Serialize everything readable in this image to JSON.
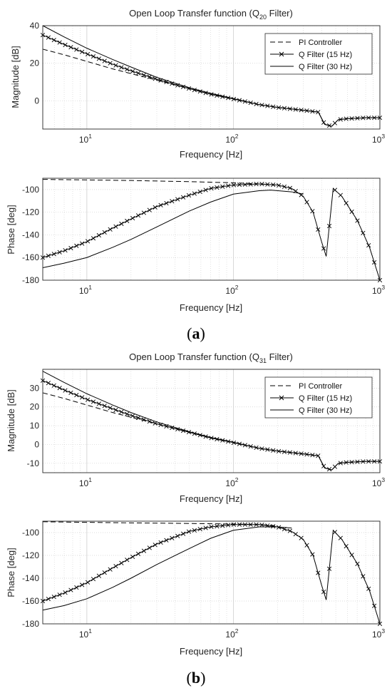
{
  "panels": [
    {
      "label": "a",
      "title_main": "Open Loop Transfer function (Q",
      "title_sub": "20",
      "title_tail": " Filter)"
    },
    {
      "label": "b",
      "title_main": "Open Loop Transfer function (Q",
      "title_sub": "31",
      "title_tail": " Filter)"
    }
  ],
  "chart_data": [
    {
      "type": "line",
      "panel": "a",
      "xlabel": "Frequency [Hz]",
      "ylabel": "Magnitude [dB]",
      "xscale": "log",
      "xlim": [
        5,
        1000
      ],
      "ylim": [
        -15,
        40
      ],
      "yticks": [
        0,
        20,
        40
      ],
      "xtick_labels": [
        "10",
        "10",
        "10"
      ],
      "xtick_exponents": [
        "1",
        "2",
        "3"
      ],
      "grid": true,
      "legend_position": "top-right",
      "series": [
        {
          "name": "PI Controller",
          "style": "dashed",
          "x": [
            5,
            7,
            10,
            15,
            20,
            30,
            50,
            70,
            100,
            150,
            200,
            300,
            380
          ],
          "y": [
            27.5,
            24.5,
            21,
            17,
            14.5,
            11,
            6.5,
            3.5,
            1,
            -2,
            -3.5,
            -5,
            -6
          ]
        },
        {
          "name": "Q Filter (15 Hz)",
          "style": "solid-x",
          "x": [
            5,
            7,
            10,
            15,
            20,
            30,
            50,
            70,
            100,
            150,
            200,
            300,
            380,
            420,
            470,
            520,
            600,
            800,
            1000
          ],
          "y": [
            35,
            30,
            25,
            19.5,
            16,
            11.5,
            6.5,
            3.5,
            1,
            -2,
            -3.5,
            -5,
            -6,
            -12.5,
            -13.5,
            -10,
            -9.5,
            -9,
            -9
          ]
        },
        {
          "name": "Q Filter (30 Hz)",
          "style": "solid",
          "x": [
            5,
            7,
            10,
            15,
            20,
            30,
            50,
            70,
            100,
            150,
            200,
            300,
            380,
            420,
            470,
            520,
            600,
            800,
            1000
          ],
          "y": [
            40,
            34,
            28,
            22,
            18,
            12.5,
            7,
            4,
            1.2,
            -2,
            -3.5,
            -5,
            -6,
            -12.5,
            -13.5,
            -10,
            -9.5,
            -9,
            -9
          ]
        }
      ]
    },
    {
      "type": "line",
      "panel": "a",
      "xlabel": "Frequency [Hz]",
      "ylabel": "Phase [deg]",
      "xscale": "log",
      "xlim": [
        5,
        1000
      ],
      "ylim": [
        -180,
        -90
      ],
      "yticks": [
        -180,
        -160,
        -140,
        -120,
        -100
      ],
      "xtick_labels": [
        "10",
        "10",
        "10"
      ],
      "xtick_exponents": [
        "1",
        "2",
        "3"
      ],
      "grid": true,
      "series": [
        {
          "name": "PI Controller",
          "style": "dashed",
          "x": [
            5,
            10,
            20,
            50,
            100,
            150,
            200
          ],
          "y": [
            -91,
            -91.5,
            -92,
            -93,
            -94,
            -95,
            -96
          ]
        },
        {
          "name": "Q Filter (15 Hz)",
          "style": "solid-x",
          "x": [
            5,
            7,
            10,
            15,
            20,
            30,
            50,
            70,
            100,
            150,
            200,
            250,
            300,
            350,
            400,
            430,
            480,
            550,
            700,
            850,
            1000
          ],
          "y": [
            -160,
            -154,
            -146,
            -134,
            -126,
            -115,
            -105,
            -99,
            -96,
            -95,
            -96,
            -99,
            -106,
            -120,
            -146,
            -159,
            -99,
            -106,
            -127,
            -151,
            -180
          ]
        },
        {
          "name": "Q Filter (30 Hz)",
          "style": "solid",
          "x": [
            5,
            7,
            10,
            15,
            20,
            30,
            50,
            70,
            100,
            150,
            180,
            250,
            300
          ],
          "y": [
            -169,
            -165,
            -160,
            -151,
            -144,
            -133,
            -119,
            -111,
            -104,
            -101,
            -100.5,
            -102,
            -104
          ]
        }
      ]
    },
    {
      "type": "line",
      "panel": "b",
      "xlabel": "Frequency [Hz]",
      "ylabel": "Magnitude [dB]",
      "xscale": "log",
      "xlim": [
        5,
        1000
      ],
      "ylim": [
        -15,
        40
      ],
      "yticks": [
        -10,
        0,
        10,
        20,
        30
      ],
      "xtick_labels": [
        "10",
        "10",
        "10"
      ],
      "xtick_exponents": [
        "1",
        "2",
        "3"
      ],
      "grid": true,
      "legend_position": "top-right",
      "series": [
        {
          "name": "PI Controller",
          "style": "dashed",
          "x": [
            5,
            7,
            10,
            15,
            20,
            30,
            50,
            70,
            100,
            150,
            200,
            300,
            380
          ],
          "y": [
            27.5,
            24.5,
            21,
            17,
            14.5,
            11,
            6.5,
            3.5,
            1,
            -2,
            -3.5,
            -5,
            -6
          ]
        },
        {
          "name": "Q Filter (15 Hz)",
          "style": "solid-x",
          "x": [
            5,
            7,
            10,
            15,
            20,
            30,
            50,
            70,
            100,
            150,
            200,
            300,
            380,
            420,
            470,
            520,
            600,
            800,
            1000
          ],
          "y": [
            34,
            29,
            24,
            19,
            15.5,
            11,
            6.5,
            3.5,
            1,
            -2,
            -3.5,
            -5,
            -6,
            -12.5,
            -13.5,
            -10,
            -9.5,
            -9,
            -9
          ]
        },
        {
          "name": "Q Filter (30 Hz)",
          "style": "solid",
          "x": [
            5,
            7,
            10,
            15,
            20,
            30,
            50,
            70,
            100,
            150,
            200,
            300,
            380,
            420,
            470,
            520,
            600,
            800,
            1000
          ],
          "y": [
            39,
            33,
            27,
            21,
            17,
            12,
            6.8,
            3.8,
            1.2,
            -2,
            -3.5,
            -5,
            -6,
            -12.5,
            -13.5,
            -10,
            -9.5,
            -9,
            -9
          ]
        }
      ]
    },
    {
      "type": "line",
      "panel": "b",
      "xlabel": "Frequency [Hz]",
      "ylabel": "Phase [deg]",
      "xscale": "log",
      "xlim": [
        5,
        1000
      ],
      "ylim": [
        -180,
        -90
      ],
      "yticks": [
        -180,
        -160,
        -140,
        -120,
        -100
      ],
      "xtick_labels": [
        "10",
        "10",
        "10"
      ],
      "xtick_exponents": [
        "1",
        "2",
        "3"
      ],
      "grid": true,
      "series": [
        {
          "name": "PI Controller",
          "style": "dashed",
          "x": [
            5,
            10,
            20,
            50,
            100,
            150,
            200
          ],
          "y": [
            -90.5,
            -91,
            -91.5,
            -92,
            -92.5,
            -93,
            -94
          ]
        },
        {
          "name": "Q Filter (15 Hz)",
          "style": "solid-x",
          "x": [
            5,
            7,
            10,
            15,
            20,
            30,
            50,
            70,
            100,
            150,
            200,
            250,
            300,
            350,
            400,
            430,
            480,
            550,
            700,
            850,
            1000
          ],
          "y": [
            -160,
            -153,
            -144,
            -131,
            -122,
            -110,
            -99,
            -95,
            -93,
            -93,
            -95,
            -99,
            -106,
            -120,
            -146,
            -159,
            -98,
            -106,
            -127,
            -151,
            -180
          ]
        },
        {
          "name": "Q Filter (30 Hz)",
          "style": "solid",
          "x": [
            5,
            7,
            10,
            15,
            20,
            30,
            50,
            70,
            100,
            150,
            200,
            250
          ],
          "y": [
            -168,
            -164,
            -158,
            -148,
            -140,
            -128,
            -114,
            -105,
            -98,
            -95,
            -95,
            -96
          ]
        }
      ]
    }
  ]
}
